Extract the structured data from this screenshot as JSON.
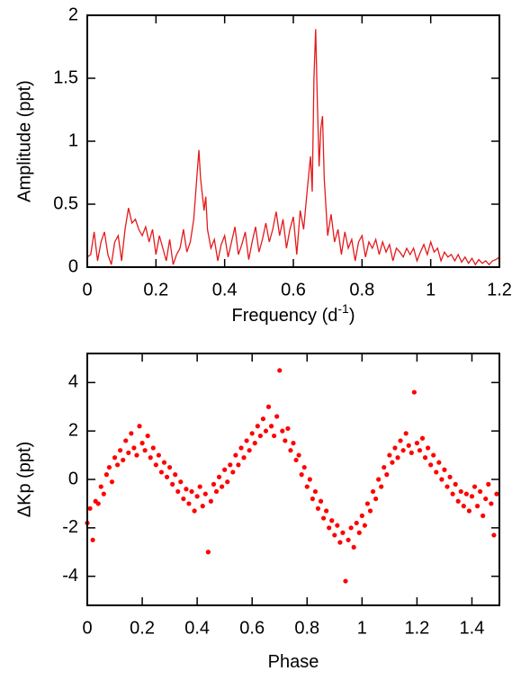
{
  "chart_data": [
    {
      "type": "line",
      "ylabel": "Amplitude (ppt)",
      "xlabel": [
        "Frequency (d",
        "-1",
        ")"
      ],
      "color": "#e41a1c",
      "xlim": [
        0,
        1.2
      ],
      "xticks": [
        0,
        0.2,
        0.4,
        0.6,
        0.8,
        1,
        1.2
      ],
      "ylim": [
        0,
        2
      ],
      "yticks": [
        0,
        0.5,
        1,
        1.5,
        2
      ],
      "x": [
        0,
        0.01,
        0.02,
        0.03,
        0.04,
        0.05,
        0.06,
        0.07,
        0.08,
        0.09,
        0.1,
        0.11,
        0.12,
        0.13,
        0.14,
        0.15,
        0.16,
        0.17,
        0.18,
        0.19,
        0.2,
        0.21,
        0.22,
        0.23,
        0.24,
        0.25,
        0.26,
        0.27,
        0.28,
        0.29,
        0.3,
        0.31,
        0.32,
        0.325,
        0.33,
        0.34,
        0.345,
        0.35,
        0.36,
        0.37,
        0.38,
        0.39,
        0.4,
        0.41,
        0.42,
        0.43,
        0.44,
        0.45,
        0.46,
        0.47,
        0.48,
        0.49,
        0.5,
        0.51,
        0.52,
        0.53,
        0.54,
        0.55,
        0.56,
        0.57,
        0.58,
        0.59,
        0.6,
        0.61,
        0.62,
        0.63,
        0.64,
        0.65,
        0.655,
        0.66,
        0.665,
        0.67,
        0.675,
        0.68,
        0.685,
        0.69,
        0.7,
        0.71,
        0.72,
        0.73,
        0.74,
        0.75,
        0.76,
        0.77,
        0.78,
        0.79,
        0.8,
        0.81,
        0.82,
        0.83,
        0.84,
        0.85,
        0.86,
        0.87,
        0.88,
        0.89,
        0.9,
        0.91,
        0.92,
        0.93,
        0.94,
        0.95,
        0.96,
        0.97,
        0.98,
        0.99,
        1,
        1.01,
        1.02,
        1.03,
        1.04,
        1.05,
        1.06,
        1.07,
        1.08,
        1.09,
        1.1,
        1.11,
        1.12,
        1.13,
        1.14,
        1.15,
        1.16,
        1.17,
        1.18,
        1.19,
        1.2
      ],
      "values": [
        0.08,
        0.1,
        0.28,
        0.05,
        0.2,
        0.28,
        0.1,
        0.02,
        0.2,
        0.25,
        0.05,
        0.3,
        0.47,
        0.35,
        0.38,
        0.3,
        0.25,
        0.32,
        0.2,
        0.3,
        0.1,
        0.25,
        0.15,
        0.05,
        0.22,
        0.02,
        0.1,
        0.15,
        0.3,
        0.12,
        0.2,
        0.38,
        0.75,
        0.93,
        0.7,
        0.45,
        0.56,
        0.3,
        0.15,
        0.22,
        0.05,
        0.18,
        0.25,
        0.08,
        0.2,
        0.32,
        0.1,
        0.18,
        0.28,
        0.06,
        0.2,
        0.32,
        0.12,
        0.22,
        0.35,
        0.2,
        0.3,
        0.44,
        0.25,
        0.38,
        0.15,
        0.3,
        0.4,
        0.1,
        0.45,
        0.3,
        0.6,
        0.88,
        0.6,
        1.5,
        1.89,
        1.3,
        0.8,
        1.1,
        1.2,
        0.7,
        0.25,
        0.42,
        0.2,
        0.3,
        0.1,
        0.28,
        0.15,
        0.22,
        0.05,
        0.2,
        0.25,
        0.08,
        0.2,
        0.15,
        0.22,
        0.1,
        0.2,
        0.12,
        0.18,
        0.05,
        0.15,
        0.12,
        0.08,
        0.15,
        0.1,
        0.15,
        0.05,
        0.12,
        0.18,
        0.1,
        0.2,
        0.12,
        0.15,
        0.05,
        0.12,
        0.08,
        0.1,
        0.05,
        0.1,
        0.04,
        0.08,
        0.03,
        0.07,
        0.02,
        0.06,
        0.03,
        0.05,
        0.02,
        0.05,
        0.06,
        0.08
      ]
    },
    {
      "type": "scatter",
      "ylabel": "ΔKp (ppt)",
      "xlabel": [
        "Phase"
      ],
      "color": "#ff0000",
      "xlim": [
        0,
        1.5
      ],
      "xticks": [
        0,
        0.2,
        0.4,
        0.6,
        0.8,
        1,
        1.2,
        1.4
      ],
      "ylim": [
        -5.2,
        5.2
      ],
      "yticks": [
        -4,
        -2,
        0,
        2,
        4
      ],
      "x": [
        0,
        0.01,
        0.02,
        0.03,
        0.04,
        0.05,
        0.06,
        0.07,
        0.08,
        0.09,
        0.1,
        0.11,
        0.12,
        0.13,
        0.14,
        0.15,
        0.16,
        0.17,
        0.18,
        0.19,
        0.2,
        0.21,
        0.22,
        0.23,
        0.24,
        0.25,
        0.26,
        0.27,
        0.28,
        0.29,
        0.3,
        0.31,
        0.32,
        0.33,
        0.34,
        0.35,
        0.36,
        0.37,
        0.38,
        0.39,
        0.4,
        0.41,
        0.42,
        0.43,
        0.44,
        0.45,
        0.46,
        0.47,
        0.48,
        0.49,
        0.5,
        0.51,
        0.52,
        0.53,
        0.54,
        0.55,
        0.56,
        0.57,
        0.58,
        0.59,
        0.6,
        0.61,
        0.62,
        0.63,
        0.64,
        0.65,
        0.66,
        0.67,
        0.68,
        0.69,
        0.7,
        0.71,
        0.72,
        0.73,
        0.74,
        0.75,
        0.76,
        0.77,
        0.78,
        0.79,
        0.8,
        0.81,
        0.82,
        0.83,
        0.84,
        0.85,
        0.86,
        0.87,
        0.88,
        0.89,
        0.9,
        0.91,
        0.92,
        0.93,
        0.94,
        0.95,
        0.96,
        0.97,
        0.98,
        0.99,
        1,
        1.01,
        1.02,
        1.03,
        1.04,
        1.05,
        1.06,
        1.07,
        1.08,
        1.09,
        1.1,
        1.11,
        1.12,
        1.13,
        1.14,
        1.15,
        1.16,
        1.17,
        1.18,
        1.19,
        1.2,
        1.21,
        1.22,
        1.23,
        1.24,
        1.25,
        1.26,
        1.27,
        1.28,
        1.29,
        1.3,
        1.31,
        1.32,
        1.33,
        1.34,
        1.35,
        1.36,
        1.37,
        1.38,
        1.39,
        1.4,
        1.41,
        1.42,
        1.43,
        1.44,
        1.45,
        1.46,
        1.47,
        1.48,
        1.49
      ],
      "values": [
        -1.8,
        -1.2,
        -2.5,
        -0.9,
        -1,
        -0.3,
        -0.6,
        0.2,
        0.5,
        -0.1,
        0.9,
        0.6,
        1.2,
        0.8,
        1.6,
        1.1,
        1.9,
        1.3,
        1,
        2.2,
        1.5,
        1.2,
        1.8,
        0.9,
        1.3,
        0.6,
        1,
        0.3,
        0.7,
        0.1,
        0.5,
        -0.2,
        0.2,
        -0.5,
        -0.1,
        -0.8,
        -0.4,
        -1,
        -0.5,
        -1.3,
        -0.7,
        -0.3,
        -1.1,
        -0.6,
        -3,
        -0.9,
        -0.2,
        -0.5,
        0.1,
        -0.3,
        0.4,
        -0.1,
        0.6,
        0.3,
        1,
        0.6,
        1.3,
        0.9,
        1.6,
        1.2,
        1.9,
        1.5,
        2.2,
        1.8,
        2.5,
        2,
        3,
        2.2,
        1.8,
        2.6,
        4.5,
        2,
        1.6,
        2.1,
        1.2,
        1.5,
        0.8,
        1,
        0.2,
        0.5,
        -0.3,
        0,
        -0.8,
        -0.5,
        -1.2,
        -0.9,
        -1.6,
        -1.3,
        -2,
        -1.7,
        -2.3,
        -1.9,
        -2.6,
        -2.2,
        -4.2,
        -2.5,
        -2,
        -2.8,
        -1.8,
        -2.2,
        -1.5,
        -1.9,
        -1,
        -1.3,
        -0.5,
        -0.8,
        0,
        -0.3,
        0.5,
        0.2,
        1,
        0.7,
        1.3,
        0.9,
        1.6,
        1.2,
        1.9,
        1.4,
        1.1,
        3.6,
        1.5,
        1.2,
        1.7,
        0.9,
        1.3,
        0.6,
        1,
        0.3,
        0.7,
        0,
        0.4,
        -0.3,
        0.1,
        -0.6,
        -0.2,
        -0.9,
        -0.5,
        -1.1,
        -0.6,
        -1.3,
        -0.7,
        -0.3,
        -1.1,
        -0.5,
        -1.5,
        -0.8,
        -0.2,
        -1,
        -2.3,
        -0.6
      ]
    }
  ]
}
